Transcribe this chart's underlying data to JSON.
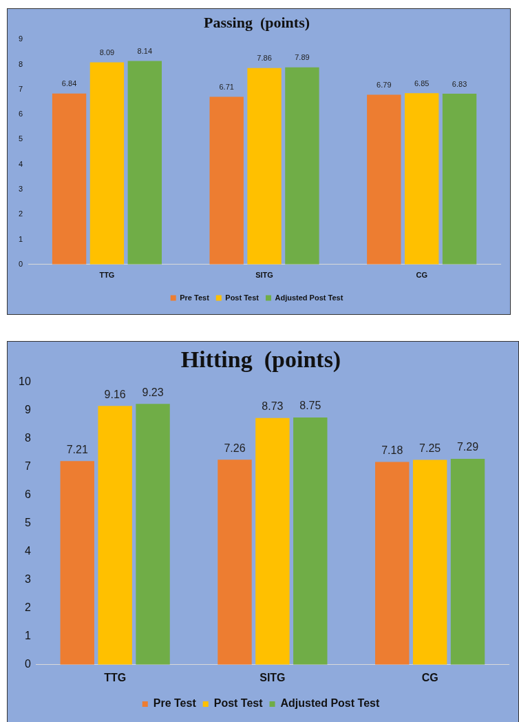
{
  "chart_data": [
    {
      "type": "bar",
      "title": "Passing  (points)",
      "categories": [
        "TTG",
        "SITG",
        "CG"
      ],
      "series": [
        {
          "name": "Pre Test",
          "color": "#ed7d31",
          "values": [
            6.84,
            6.71,
            6.79
          ]
        },
        {
          "name": "Post Test",
          "color": "#ffc000",
          "values": [
            8.09,
            7.86,
            6.85
          ]
        },
        {
          "name": "Adjusted Post Test",
          "color": "#70ad47",
          "values": [
            8.14,
            7.89,
            6.83
          ]
        }
      ],
      "ylim": [
        0,
        9
      ],
      "yticks": [
        0,
        1,
        2,
        3,
        4,
        5,
        6,
        7,
        8,
        9
      ],
      "grid": false,
      "legend": "bottom",
      "data_labels": true
    },
    {
      "type": "bar",
      "title": "Hitting  (points)",
      "categories": [
        "TTG",
        "SITG",
        "CG"
      ],
      "series": [
        {
          "name": "Pre Test",
          "color": "#ed7d31",
          "values": [
            7.21,
            7.26,
            7.18
          ]
        },
        {
          "name": "Post Test",
          "color": "#ffc000",
          "values": [
            9.16,
            8.73,
            7.25
          ]
        },
        {
          "name": "Adjusted Post Test",
          "color": "#70ad47",
          "values": [
            9.23,
            8.75,
            7.29
          ]
        }
      ],
      "ylim": [
        0,
        10
      ],
      "yticks": [
        0,
        1,
        2,
        3,
        4,
        5,
        6,
        7,
        8,
        9,
        10
      ],
      "grid": false,
      "legend": "bottom",
      "data_labels": true
    }
  ]
}
